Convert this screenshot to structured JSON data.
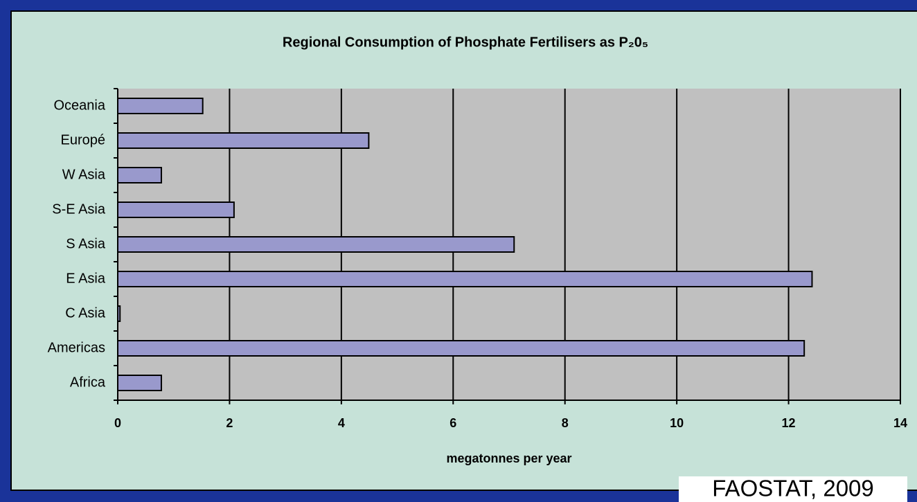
{
  "chart_data": {
    "type": "barh",
    "title": "Regional Consumption of Phosphate Fertilisers as P₂0₅",
    "categories": [
      "Oceania",
      "Europé",
      "W Asia",
      "S-E Asia",
      "S Asia",
      "E Asia",
      "C Asia",
      "Americas",
      "Africa"
    ],
    "values": [
      1.52,
      4.49,
      0.78,
      2.08,
      7.09,
      12.42,
      0.04,
      12.28,
      0.78
    ],
    "color": "#9999cc",
    "xlim": [
      0,
      14
    ],
    "xticks": [
      0,
      2,
      4,
      6,
      8,
      10,
      12,
      14
    ],
    "xlabel": "megatonnes per year",
    "grid": true,
    "source": "FAOSTAT, 2009"
  }
}
